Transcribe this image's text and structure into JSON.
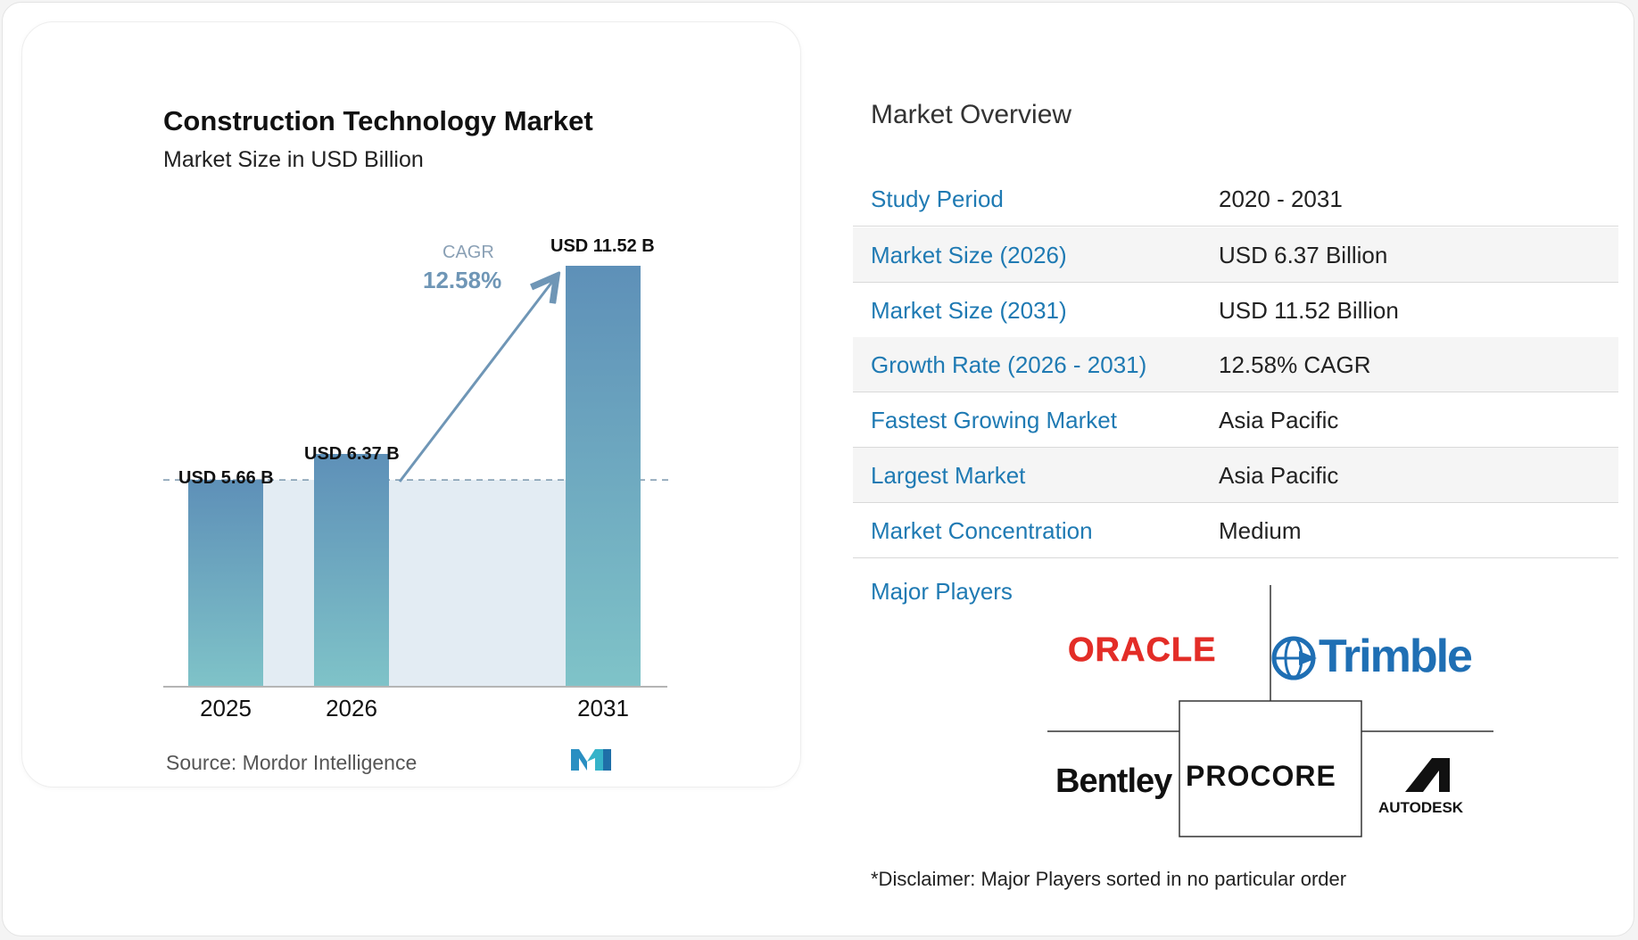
{
  "chart_data": {
    "type": "bar",
    "title": "Construction Technology Market",
    "subtitle": "Market Size in USD Billion",
    "categories": [
      "2025",
      "2026",
      "2031"
    ],
    "values": [
      5.66,
      6.37,
      11.52
    ],
    "value_labels": [
      "USD 5.66 B",
      "USD 6.37 B",
      "USD 11.52 B"
    ],
    "cagr_label": "CAGR",
    "cagr_value": "12.58%",
    "ylim": [
      0,
      11.52
    ],
    "grid": false,
    "colors": {
      "bar_top": "#5e90b8",
      "bar_bottom": "#7fc3c8",
      "band": "#e3ecf3",
      "dash": "#7b97ad",
      "arrow": "#6f96b6"
    }
  },
  "source": {
    "label": "Source:",
    "name": "Mordor Intelligence"
  },
  "overview": {
    "title": "Market Overview",
    "rows": [
      {
        "key": "Study Period",
        "value": "2020 - 2031"
      },
      {
        "key": "Market Size (2026)",
        "value": "USD 6.37 Billion"
      },
      {
        "key": "Market Size (2031)",
        "value": "USD 11.52 Billion"
      },
      {
        "key": "Growth Rate (2026 - 2031)",
        "value": "12.58% CAGR"
      },
      {
        "key": "Fastest Growing Market",
        "value": "Asia Pacific"
      },
      {
        "key": "Largest Market",
        "value": "Asia Pacific"
      },
      {
        "key": "Market Concentration",
        "value": "Medium"
      }
    ],
    "major_players_label": "Major Players",
    "players": [
      "ORACLE",
      "Trimble",
      "Bentley",
      "PROCORE",
      "AUTODESK"
    ],
    "disclaimer": "*Disclaimer: Major Players sorted in no particular order"
  },
  "colors": {
    "key_text": "#1f7ab3",
    "oracle": "#e32d27",
    "trimble": "#1f6fb4",
    "mordor_logo": "#2a8fc2"
  }
}
